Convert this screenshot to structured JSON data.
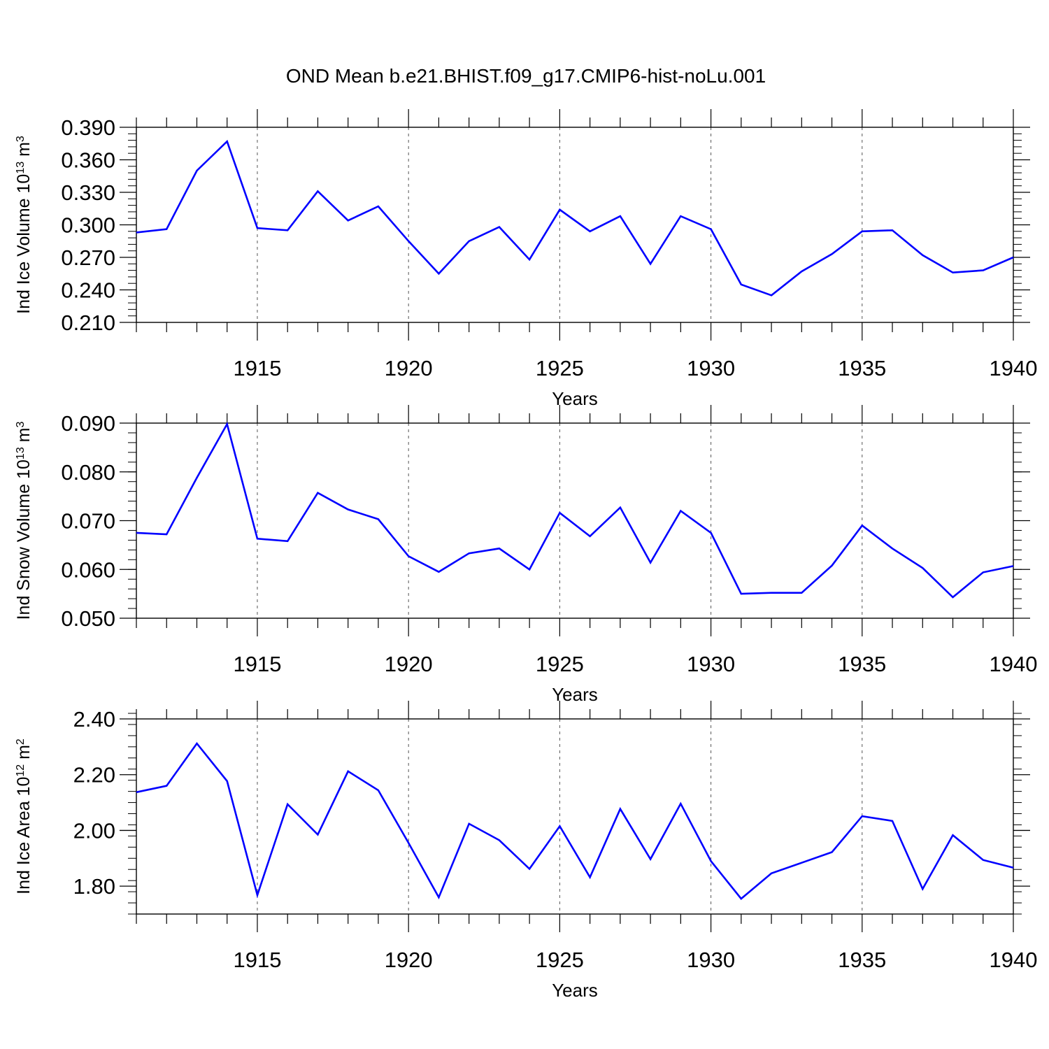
{
  "title": "OND Mean b.e21.BHIST.f09_g17.CMIP6-hist-noLu.001",
  "colors": {
    "line": "#0000ff",
    "axis": "#000000",
    "grid": "#555555"
  },
  "chart_data": [
    {
      "type": "line",
      "xlabel": "Years",
      "ylabel": {
        "text": "Ind Ice Volume 10",
        "sup": "13",
        "unit": " m",
        "unit_sup": "3"
      },
      "xlim": [
        1911,
        1940
      ],
      "ylim": [
        0.21,
        0.39
      ],
      "x_ticks": [
        1915,
        1920,
        1925,
        1930,
        1935,
        1940
      ],
      "x_tick_labels": [
        "1915",
        "1920",
        "1925",
        "1930",
        "1935",
        "1940"
      ],
      "y_ticks": [
        0.21,
        0.24,
        0.27,
        0.3,
        0.33,
        0.36,
        0.39
      ],
      "y_tick_labels": [
        "0.210",
        "0.240",
        "0.270",
        "0.300",
        "0.330",
        "0.360",
        "0.390"
      ],
      "y_minor_step": 0.006,
      "grid": "x-dashed",
      "series": [
        {
          "x": [
            1911,
            1912,
            1913,
            1914,
            1915,
            1916,
            1917,
            1918,
            1919,
            1920,
            1921,
            1922,
            1923,
            1924,
            1925,
            1926,
            1927,
            1928,
            1929,
            1930,
            1931,
            1932,
            1933,
            1934,
            1935,
            1936,
            1937,
            1938,
            1939,
            1940
          ],
          "values": [
            0.293,
            0.296,
            0.35,
            0.377,
            0.297,
            0.295,
            0.331,
            0.304,
            0.317,
            0.285,
            0.255,
            0.285,
            0.298,
            0.268,
            0.314,
            0.294,
            0.308,
            0.264,
            0.308,
            0.296,
            0.245,
            0.235,
            0.257,
            0.273,
            0.294,
            0.295,
            0.272,
            0.256,
            0.258,
            0.27
          ]
        }
      ]
    },
    {
      "type": "line",
      "xlabel": "Years",
      "ylabel": {
        "text": "Ind Snow Volume 10",
        "sup": "13",
        "unit": " m",
        "unit_sup": "3"
      },
      "xlim": [
        1911,
        1940
      ],
      "ylim": [
        0.05,
        0.09
      ],
      "x_ticks": [
        1915,
        1920,
        1925,
        1930,
        1935,
        1940
      ],
      "x_tick_labels": [
        "1915",
        "1920",
        "1925",
        "1930",
        "1935",
        "1940"
      ],
      "y_ticks": [
        0.05,
        0.06,
        0.07,
        0.08,
        0.09
      ],
      "y_tick_labels": [
        "0.050",
        "0.060",
        "0.070",
        "0.080",
        "0.090"
      ],
      "y_minor_step": 0.002,
      "grid": "x-dashed",
      "series": [
        {
          "x": [
            1911,
            1912,
            1913,
            1914,
            1915,
            1916,
            1917,
            1918,
            1919,
            1920,
            1921,
            1922,
            1923,
            1924,
            1925,
            1926,
            1927,
            1928,
            1929,
            1930,
            1931,
            1932,
            1933,
            1934,
            1935,
            1936,
            1937,
            1938,
            1939,
            1940
          ],
          "values": [
            0.0675,
            0.0672,
            0.0788,
            0.0898,
            0.0663,
            0.0658,
            0.0757,
            0.0723,
            0.0703,
            0.0627,
            0.0595,
            0.0633,
            0.0643,
            0.06,
            0.0716,
            0.0668,
            0.0727,
            0.0614,
            0.072,
            0.0675,
            0.055,
            0.0552,
            0.0552,
            0.0608,
            0.069,
            0.0643,
            0.0603,
            0.0543,
            0.0594,
            0.0607
          ]
        }
      ]
    },
    {
      "type": "line",
      "xlabel": "Years",
      "ylabel": {
        "text": "Ind Ice Area 10",
        "sup": "12",
        "unit": " m",
        "unit_sup": "2"
      },
      "xlim": [
        1911,
        1940
      ],
      "ylim": [
        1.7,
        2.4
      ],
      "x_ticks": [
        1915,
        1920,
        1925,
        1930,
        1935,
        1940
      ],
      "x_tick_labels": [
        "1915",
        "1920",
        "1925",
        "1930",
        "1935",
        "1940"
      ],
      "y_ticks": [
        1.8,
        2.0,
        2.2,
        2.4
      ],
      "y_tick_labels": [
        "1.80",
        "2.00",
        "2.20",
        "2.40"
      ],
      "y_minor_step": 0.04,
      "grid": "x-dashed",
      "series": [
        {
          "x": [
            1911,
            1912,
            1913,
            1914,
            1915,
            1916,
            1917,
            1918,
            1919,
            1920,
            1921,
            1922,
            1923,
            1924,
            1925,
            1926,
            1927,
            1928,
            1929,
            1930,
            1931,
            1932,
            1933,
            1934,
            1935,
            1936,
            1937,
            1938,
            1939,
            1940
          ],
          "values": [
            2.137,
            2.16,
            2.312,
            2.177,
            1.768,
            2.094,
            1.985,
            2.212,
            2.144,
            1.955,
            1.76,
            2.024,
            1.965,
            1.862,
            2.015,
            1.832,
            2.077,
            1.897,
            2.096,
            1.89,
            1.755,
            1.846,
            1.884,
            1.922,
            2.051,
            2.034,
            1.79,
            1.983,
            1.894,
            1.866
          ]
        }
      ]
    }
  ]
}
